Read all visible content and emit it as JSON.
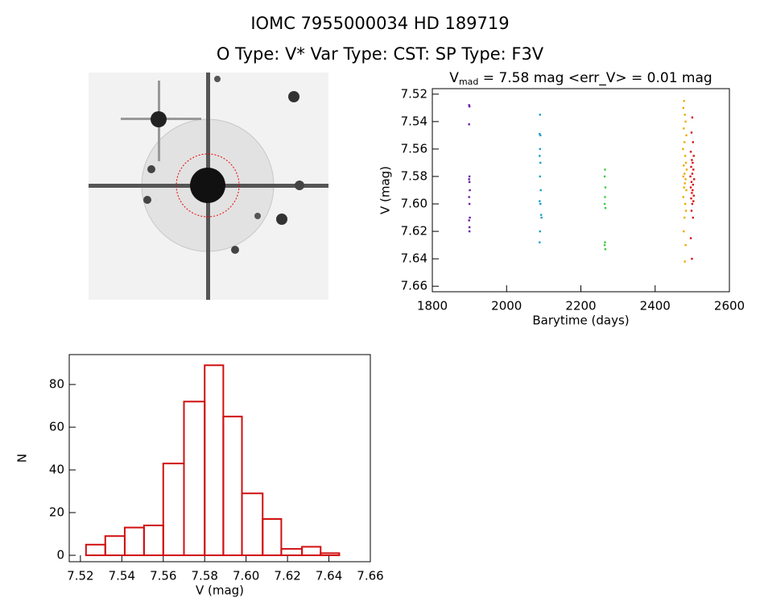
{
  "header": {
    "title": "IOMC 7955000034    HD 189719",
    "subtitle": "O Type: V*   Var Type: CST:   SP Type: F3V"
  },
  "chart_data": [
    {
      "type": "scatter",
      "title": {
        "main": "V",
        "sub": "mad",
        "rest": " = 7.58 mag  <err_V> = 0.01 mag"
      },
      "x_label": "Barytime (days)",
      "y_label": "V (mag)",
      "xlim": [
        1800,
        2600
      ],
      "xticks": [
        1800,
        2000,
        2200,
        2400,
        2600
      ],
      "ylim": [
        7.516,
        7.664
      ],
      "y_inverted": true,
      "yticks": [
        {
          "value": 7.52,
          "label": "7.52"
        },
        {
          "value": 7.54,
          "label": "7.54"
        },
        {
          "value": 7.56,
          "label": "7.56"
        },
        {
          "value": 7.58,
          "label": "7.58"
        },
        {
          "value": 7.6,
          "label": "7.60"
        },
        {
          "value": 7.62,
          "label": "7.62"
        },
        {
          "value": 7.64,
          "label": "7.64"
        },
        {
          "value": 7.66,
          "label": "7.66"
        }
      ],
      "series": [
        {
          "color": "#6a1aa8",
          "x": [
            1899,
            1900,
            1899,
            1900,
            1899,
            1900,
            1901,
            1899,
            1900,
            1901,
            1899,
            1900,
            1900
          ],
          "y": [
            7.528,
            7.529,
            7.542,
            7.58,
            7.582,
            7.584,
            7.59,
            7.595,
            7.6,
            7.61,
            7.612,
            7.617,
            7.62
          ]
        },
        {
          "color": "#1a9ecf",
          "x": [
            2090,
            2089,
            2091,
            2090,
            2089,
            2091,
            2090,
            2092,
            2089,
            2091,
            2093,
            2094,
            2090,
            2089
          ],
          "y": [
            7.535,
            7.549,
            7.55,
            7.56,
            7.565,
            7.57,
            7.58,
            7.59,
            7.598,
            7.6,
            7.608,
            7.61,
            7.62,
            7.628
          ]
        },
        {
          "color": "#3ccc3c",
          "x": [
            2265,
            2264,
            2266,
            2265,
            2264,
            2266,
            2265,
            2264,
            2266
          ],
          "y": [
            7.575,
            7.58,
            7.588,
            7.595,
            7.6,
            7.603,
            7.628,
            7.63,
            7.633
          ]
        },
        {
          "color": "#f0a800",
          "x": [
            2478,
            2476,
            2480,
            2482,
            2477,
            2484,
            2479,
            2475,
            2481,
            2483,
            2477,
            2485,
            2479,
            2476,
            2482,
            2480,
            2478,
            2484,
            2476,
            2481,
            2483,
            2479,
            2477,
            2482,
            2480
          ],
          "y": [
            7.525,
            7.53,
            7.535,
            7.54,
            7.545,
            7.55,
            7.555,
            7.56,
            7.565,
            7.57,
            7.572,
            7.575,
            7.578,
            7.58,
            7.582,
            7.585,
            7.588,
            7.59,
            7.595,
            7.6,
            7.605,
            7.61,
            7.62,
            7.63,
            7.642
          ]
        },
        {
          "color": "#d81414",
          "x": [
            2500,
            2498,
            2502,
            2496,
            2504,
            2499,
            2501,
            2497,
            2503,
            2500,
            2495,
            2505,
            2498,
            2502,
            2496,
            2501,
            2499,
            2504,
            2497,
            2503,
            2500,
            2498,
            2502,
            2496,
            2499
          ],
          "y": [
            7.537,
            7.548,
            7.555,
            7.562,
            7.565,
            7.568,
            7.57,
            7.573,
            7.575,
            7.578,
            7.58,
            7.582,
            7.584,
            7.586,
            7.588,
            7.59,
            7.592,
            7.594,
            7.596,
            7.598,
            7.6,
            7.605,
            7.61,
            7.625,
            7.64
          ]
        }
      ]
    },
    {
      "type": "histogram",
      "x_label": "V (mag)",
      "y_label": "N",
      "color": "#d01010",
      "bins": [
        7.5227,
        7.532,
        7.5414,
        7.5507,
        7.56,
        7.57,
        7.58,
        7.589,
        7.598,
        7.608,
        7.617,
        7.627,
        7.636,
        7.645
      ],
      "counts": [
        5,
        9,
        13,
        14,
        43,
        72,
        89,
        65,
        29,
        17,
        3,
        4,
        1
      ],
      "xlim": [
        7.5146,
        7.66
      ],
      "xticks": [
        {
          "value": 7.52,
          "label": "7.52"
        },
        {
          "value": 7.54,
          "label": "7.54"
        },
        {
          "value": 7.56,
          "label": "7.56"
        },
        {
          "value": 7.58,
          "label": "7.58"
        },
        {
          "value": 7.6,
          "label": "7.60"
        },
        {
          "value": 7.62,
          "label": "7.62"
        },
        {
          "value": 7.64,
          "label": "7.64"
        },
        {
          "value": 7.66,
          "label": "7.66"
        }
      ],
      "ylim": [
        -3,
        94
      ],
      "yticks": [
        0,
        20,
        40,
        60,
        80
      ]
    }
  ]
}
